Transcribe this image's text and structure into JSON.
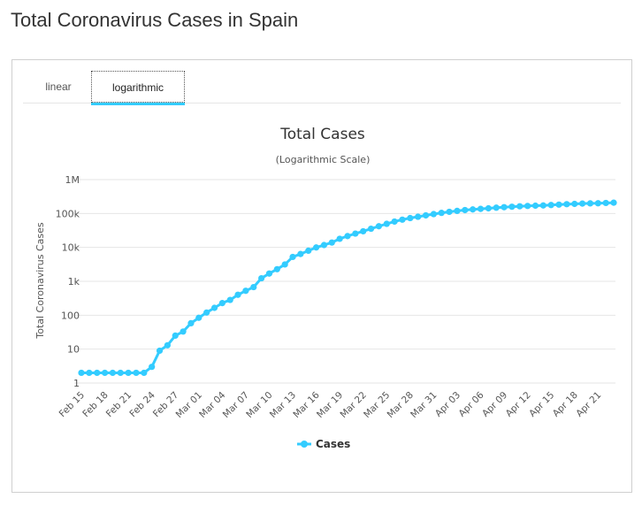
{
  "page": {
    "title": "Total Coronavirus Cases in Spain"
  },
  "tabs": [
    {
      "label": "linear",
      "active": false
    },
    {
      "label": "logarithmic",
      "active": true
    }
  ],
  "colors": {
    "series": "#33ccff",
    "grid": "#e6e6e6",
    "active_tab_underline": "#33ccff"
  },
  "chart_data": {
    "type": "line",
    "title": "Total Cases",
    "subtitle": "(Logarithmic Scale)",
    "ylabel": "Total Coronavirus Cases",
    "xlabel": "",
    "yscale": "log",
    "ylim": [
      1,
      1000000
    ],
    "yticks": [
      {
        "value": 1,
        "label": "1"
      },
      {
        "value": 10,
        "label": "10"
      },
      {
        "value": 100,
        "label": "100"
      },
      {
        "value": 1000,
        "label": "1k"
      },
      {
        "value": 10000,
        "label": "10k"
      },
      {
        "value": 100000,
        "label": "100k"
      },
      {
        "value": 1000000,
        "label": "1M"
      }
    ],
    "xticks": [
      "Feb 15",
      "Feb 18",
      "Feb 21",
      "Feb 24",
      "Feb 27",
      "Mar 01",
      "Mar 04",
      "Mar 07",
      "Mar 10",
      "Mar 13",
      "Mar 16",
      "Mar 19",
      "Mar 22",
      "Mar 25",
      "Mar 28",
      "Mar 31",
      "Apr 03",
      "Apr 06",
      "Apr 09",
      "Apr 12",
      "Apr 15",
      "Apr 18",
      "Apr 21"
    ],
    "legend": {
      "position": "bottom-center",
      "entries": [
        "Cases"
      ]
    },
    "grid": true,
    "series": [
      {
        "name": "Cases",
        "x": [
          "Feb 15",
          "Feb 16",
          "Feb 17",
          "Feb 18",
          "Feb 19",
          "Feb 20",
          "Feb 21",
          "Feb 22",
          "Feb 23",
          "Feb 24",
          "Feb 25",
          "Feb 26",
          "Feb 27",
          "Feb 28",
          "Feb 29",
          "Mar 01",
          "Mar 02",
          "Mar 03",
          "Mar 04",
          "Mar 05",
          "Mar 06",
          "Mar 07",
          "Mar 08",
          "Mar 09",
          "Mar 10",
          "Mar 11",
          "Mar 12",
          "Mar 13",
          "Mar 14",
          "Mar 15",
          "Mar 16",
          "Mar 17",
          "Mar 18",
          "Mar 19",
          "Mar 20",
          "Mar 21",
          "Mar 22",
          "Mar 23",
          "Mar 24",
          "Mar 25",
          "Mar 26",
          "Mar 27",
          "Mar 28",
          "Mar 29",
          "Mar 30",
          "Mar 31",
          "Apr 01",
          "Apr 02",
          "Apr 03",
          "Apr 04",
          "Apr 05",
          "Apr 06",
          "Apr 07",
          "Apr 08",
          "Apr 09",
          "Apr 10",
          "Apr 11",
          "Apr 12",
          "Apr 13",
          "Apr 14",
          "Apr 15",
          "Apr 16",
          "Apr 17",
          "Apr 18",
          "Apr 19",
          "Apr 20",
          "Apr 21",
          "Apr 22",
          "Apr 23"
        ],
        "values": [
          2,
          2,
          2,
          2,
          2,
          2,
          2,
          2,
          2,
          3,
          9,
          13,
          25,
          33,
          58,
          84,
          120,
          165,
          228,
          282,
          401,
          525,
          674,
          1231,
          1695,
          2277,
          3146,
          5232,
          6391,
          7988,
          9942,
          11748,
          13910,
          17963,
          21571,
          25496,
          29909,
          35480,
          42058,
          49515,
          57786,
          65719,
          73235,
          80110,
          87956,
          95923,
          104118,
          112065,
          119199,
          126168,
          131646,
          136675,
          141942,
          148220,
          153222,
          158273,
          163027,
          166831,
          170099,
          172541,
          177644,
          182816,
          188068,
          191726,
          195944,
          198674,
          200210,
          204178,
          208389
        ]
      }
    ]
  }
}
